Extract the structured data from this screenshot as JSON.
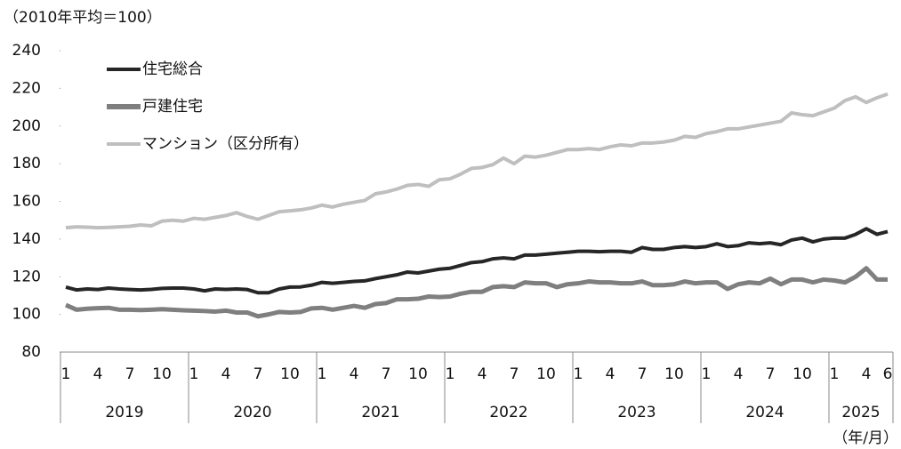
{
  "chart_data": {
    "type": "line",
    "y_axis_label": "（2010年平均＝100）",
    "x_axis_label": "（年/月）",
    "categories": [
      "1",
      null,
      null,
      "4",
      null,
      null,
      "7",
      null,
      null,
      "10",
      null,
      null,
      "1",
      null,
      null,
      "4",
      null,
      null,
      "7",
      null,
      null,
      "10",
      null,
      null,
      "1",
      null,
      null,
      "4",
      null,
      null,
      "7",
      null,
      null,
      "10",
      null,
      null,
      "1",
      null,
      null,
      "4",
      null,
      null,
      "7",
      null,
      null,
      "10",
      null,
      null,
      "1",
      null,
      null,
      "4",
      null,
      null,
      "7",
      null,
      null,
      "10",
      null,
      null,
      "1",
      null,
      null,
      "4",
      null,
      null,
      "7",
      null,
      null,
      "10",
      null,
      null,
      "1",
      null,
      null,
      "4",
      null,
      "6"
    ],
    "years": [
      "2019",
      "2020",
      "2021",
      "2022",
      "2023",
      "2024",
      "2025"
    ],
    "ylim": [
      80,
      240
    ],
    "yticks": [
      80,
      100,
      120,
      140,
      160,
      180,
      200,
      220,
      240
    ],
    "series": [
      {
        "name": "住宅総合",
        "color": "#262626",
        "values": [
          114.5,
          113,
          113.5,
          113.2,
          114,
          113.5,
          113.2,
          113,
          113.3,
          113.8,
          114,
          114,
          113.5,
          112.5,
          113.5,
          113.3,
          113.5,
          113.2,
          111.5,
          111.5,
          113.5,
          114.5,
          114.6,
          115.5,
          117,
          116.5,
          117,
          117.5,
          117.8,
          119,
          120,
          121,
          122.5,
          122,
          123,
          124,
          124.5,
          126,
          127.5,
          128,
          129.5,
          130,
          129.5,
          131.5,
          131.5,
          132,
          132.5,
          133,
          133.5,
          133.5,
          133.3,
          133.5,
          133.5,
          133,
          135.5,
          134.5,
          134.5,
          135.5,
          136,
          135.5,
          136,
          137.5,
          136,
          136.5,
          138,
          137.5,
          138,
          137,
          139.5,
          140.5,
          138.5,
          140,
          140.5,
          140.5,
          142.5,
          145.5,
          142.5,
          144
        ]
      },
      {
        "name": "戸建住宅",
        "color": "#7f7f7f",
        "values": [
          105,
          102.5,
          103,
          103.3,
          103.5,
          102.5,
          102.5,
          102.3,
          102.5,
          102.8,
          102.5,
          102.2,
          102,
          101.8,
          101.5,
          102,
          101,
          101,
          99,
          100,
          101.3,
          101,
          101.3,
          103.2,
          103.5,
          102.5,
          103.5,
          104.5,
          103.5,
          105.5,
          106,
          108,
          108,
          108.3,
          109.5,
          109.2,
          109.5,
          111,
          112,
          112,
          114.5,
          115,
          114.5,
          117,
          116.5,
          116.5,
          114.5,
          116,
          116.5,
          117.5,
          117,
          117,
          116.5,
          116.5,
          117.5,
          115.5,
          115.5,
          116,
          117.5,
          116.5,
          117,
          117,
          113.5,
          116,
          117,
          116.5,
          119,
          116,
          118.5,
          118.5,
          117,
          118.5,
          118,
          117,
          120,
          124.5,
          118.5,
          118.5
        ]
      },
      {
        "name": "マンション（区分所有）",
        "color": "#bfbfbf",
        "values": [
          146,
          146.5,
          146.3,
          146,
          146.2,
          146.5,
          146.8,
          147.5,
          147,
          149.5,
          150,
          149.5,
          151,
          150.5,
          151.5,
          152.5,
          154,
          152,
          150.5,
          152.5,
          154.5,
          155,
          155.5,
          156.5,
          158,
          157,
          158.5,
          159.5,
          160.5,
          164,
          165,
          166.5,
          168.5,
          169,
          168,
          171.5,
          172,
          174.5,
          177.5,
          178,
          179.5,
          183,
          180,
          184,
          183.5,
          184.5,
          186,
          187.5,
          187.5,
          188,
          187.5,
          189,
          190,
          189.5,
          191,
          191,
          191.5,
          192.5,
          194.5,
          194,
          196,
          197,
          198.5,
          198.5,
          199.5,
          200.5,
          201.5,
          202.5,
          207,
          206,
          205.5,
          207.5,
          209.5,
          213.5,
          215.5,
          212.5,
          215,
          217
        ]
      }
    ]
  }
}
